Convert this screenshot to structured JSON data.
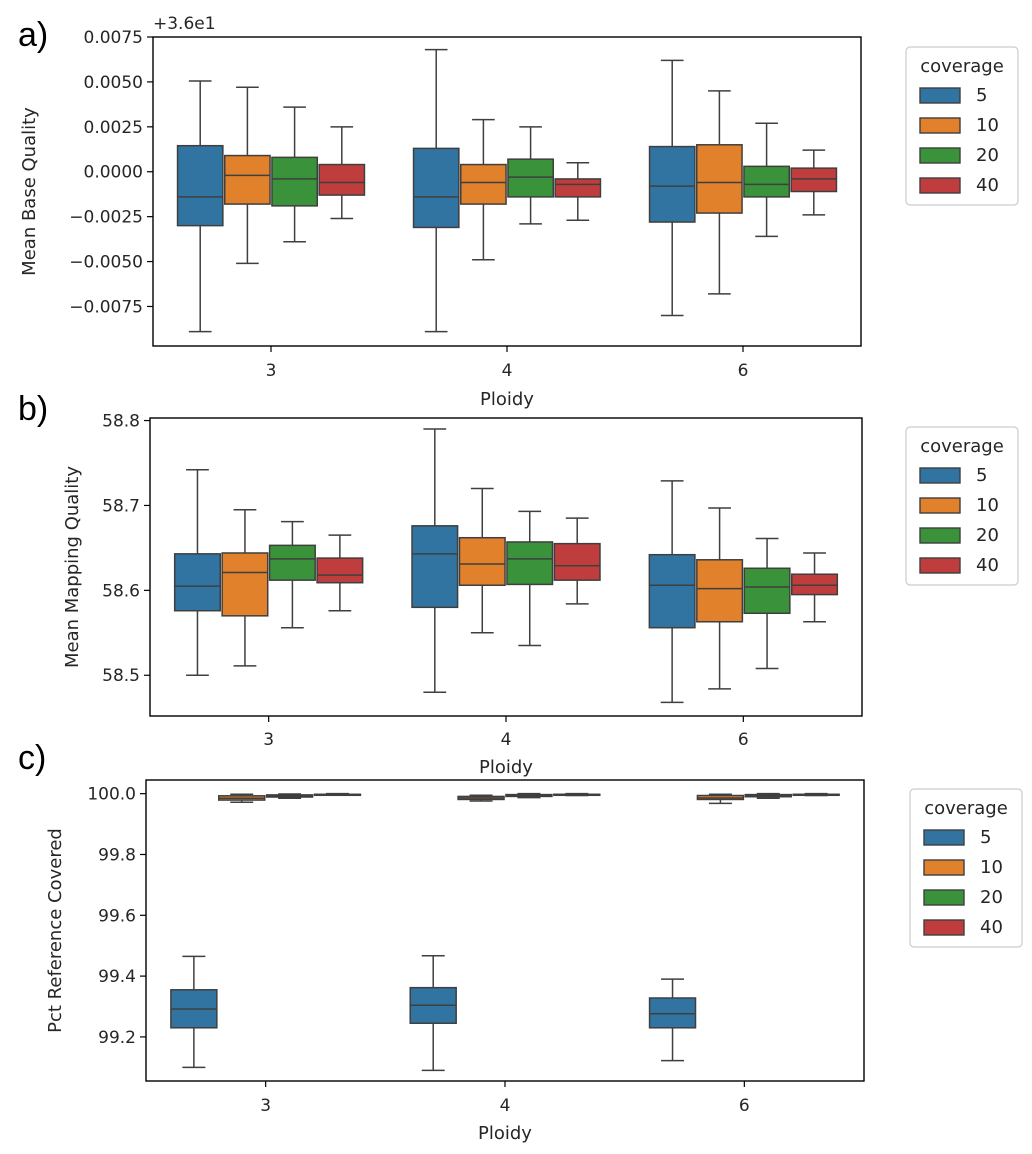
{
  "colors": {
    "5": "#3274a1",
    "10": "#e1812c",
    "20": "#3a923a",
    "40": "#c03d3e",
    "edge": "#3f3f3f",
    "axis": "#000000"
  },
  "legend": {
    "title": "coverage",
    "entries": [
      "5",
      "10",
      "20",
      "40"
    ]
  },
  "chart_data": [
    {
      "panel_label": "a)",
      "type": "boxplot",
      "ylabel": "Mean Base Quality",
      "xlabel": "Ploidy",
      "offset_text": "+3.6e1",
      "categories": [
        "3",
        "4",
        "6"
      ],
      "ylim": [
        -0.0097,
        0.0075
      ],
      "yticks": [
        0.0075,
        0.005,
        0.0025,
        0.0,
        -0.0025,
        -0.005,
        -0.0075
      ],
      "ytick_labels": [
        "0.0075",
        "0.0050",
        "0.0025",
        "0.0000",
        "−0.0025",
        "−0.0050",
        "−0.0075"
      ],
      "series": [
        {
          "name": "5",
          "boxes": [
            {
              "whislo": -0.0089,
              "q1": -0.003,
              "median": -0.0014,
              "q3": 0.00145,
              "whishi": 0.00505
            },
            {
              "whislo": -0.0089,
              "q1": -0.0031,
              "median": -0.0014,
              "q3": 0.0013,
              "whishi": 0.0068
            },
            {
              "whislo": -0.008,
              "q1": -0.0028,
              "median": -0.0008,
              "q3": 0.0014,
              "whishi": 0.0062
            }
          ]
        },
        {
          "name": "10",
          "boxes": [
            {
              "whislo": -0.0051,
              "q1": -0.0018,
              "median": -0.0002,
              "q3": 0.0009,
              "whishi": 0.0047
            },
            {
              "whislo": -0.0049,
              "q1": -0.0018,
              "median": -0.0006,
              "q3": 0.0004,
              "whishi": 0.0029
            },
            {
              "whislo": -0.0068,
              "q1": -0.0023,
              "median": -0.0006,
              "q3": 0.0015,
              "whishi": 0.0045
            }
          ]
        },
        {
          "name": "20",
          "boxes": [
            {
              "whislo": -0.0039,
              "q1": -0.0019,
              "median": -0.0004,
              "q3": 0.0008,
              "whishi": 0.0036
            },
            {
              "whislo": -0.0029,
              "q1": -0.0014,
              "median": -0.0003,
              "q3": 0.0007,
              "whishi": 0.0025
            },
            {
              "whislo": -0.0036,
              "q1": -0.0014,
              "median": -0.0007,
              "q3": 0.0003,
              "whishi": 0.0027
            }
          ]
        },
        {
          "name": "40",
          "boxes": [
            {
              "whislo": -0.0026,
              "q1": -0.0013,
              "median": -0.0006,
              "q3": 0.0004,
              "whishi": 0.0025
            },
            {
              "whislo": -0.0027,
              "q1": -0.0014,
              "median": -0.0007,
              "q3": -0.0004,
              "whishi": 0.0005
            },
            {
              "whislo": -0.0024,
              "q1": -0.0011,
              "median": -0.0004,
              "q3": 0.0002,
              "whishi": 0.0012
            }
          ]
        }
      ]
    },
    {
      "panel_label": "b)",
      "type": "boxplot",
      "ylabel": "Mean Mapping Quality",
      "xlabel": "Ploidy",
      "categories": [
        "3",
        "4",
        "6"
      ],
      "ylim": [
        58.452,
        58.803
      ],
      "yticks": [
        58.8,
        58.7,
        58.6,
        58.5
      ],
      "ytick_labels": [
        "58.8",
        "58.7",
        "58.6",
        "58.5"
      ],
      "series": [
        {
          "name": "5",
          "boxes": [
            {
              "whislo": 58.5,
              "q1": 58.576,
              "median": 58.605,
              "q3": 58.643,
              "whishi": 58.742
            },
            {
              "whislo": 58.48,
              "q1": 58.58,
              "median": 58.643,
              "q3": 58.676,
              "whishi": 58.79
            },
            {
              "whislo": 58.468,
              "q1": 58.556,
              "median": 58.606,
              "q3": 58.642,
              "whishi": 58.729
            }
          ]
        },
        {
          "name": "10",
          "boxes": [
            {
              "whislo": 58.511,
              "q1": 58.57,
              "median": 58.621,
              "q3": 58.644,
              "whishi": 58.695
            },
            {
              "whislo": 58.55,
              "q1": 58.606,
              "median": 58.631,
              "q3": 58.662,
              "whishi": 58.72
            },
            {
              "whislo": 58.484,
              "q1": 58.563,
              "median": 58.602,
              "q3": 58.636,
              "whishi": 58.697
            }
          ]
        },
        {
          "name": "20",
          "boxes": [
            {
              "whislo": 58.556,
              "q1": 58.612,
              "median": 58.637,
              "q3": 58.653,
              "whishi": 58.681
            },
            {
              "whislo": 58.535,
              "q1": 58.607,
              "median": 58.637,
              "q3": 58.657,
              "whishi": 58.693
            },
            {
              "whislo": 58.508,
              "q1": 58.573,
              "median": 58.604,
              "q3": 58.626,
              "whishi": 58.661
            }
          ]
        },
        {
          "name": "40",
          "boxes": [
            {
              "whislo": 58.576,
              "q1": 58.609,
              "median": 58.618,
              "q3": 58.638,
              "whishi": 58.665
            },
            {
              "whislo": 58.584,
              "q1": 58.612,
              "median": 58.629,
              "q3": 58.655,
              "whishi": 58.685
            },
            {
              "whislo": 58.563,
              "q1": 58.595,
              "median": 58.606,
              "q3": 58.619,
              "whishi": 58.644
            }
          ]
        }
      ]
    },
    {
      "panel_label": "c)",
      "type": "boxplot",
      "ylabel": "Pct Reference Covered",
      "xlabel": "Ploidy",
      "categories": [
        "3",
        "4",
        "6"
      ],
      "ylim": [
        99.055,
        100.045
      ],
      "yticks": [
        100.0,
        99.8,
        99.6,
        99.4,
        99.2
      ],
      "ytick_labels": [
        "100.0",
        "99.8",
        "99.6",
        "99.4",
        "99.2"
      ],
      "series": [
        {
          "name": "5",
          "boxes": [
            {
              "whislo": 99.1,
              "q1": 99.23,
              "median": 99.292,
              "q3": 99.355,
              "whishi": 99.465
            },
            {
              "whislo": 99.09,
              "q1": 99.245,
              "median": 99.304,
              "q3": 99.362,
              "whishi": 99.467
            },
            {
              "whislo": 99.122,
              "q1": 99.23,
              "median": 99.276,
              "q3": 99.328,
              "whishi": 99.39
            }
          ]
        },
        {
          "name": "10",
          "boxes": [
            {
              "whislo": 99.972,
              "q1": 99.979,
              "median": 99.985,
              "q3": 99.993,
              "whishi": 99.998
            },
            {
              "whislo": 99.976,
              "q1": 99.981,
              "median": 99.986,
              "q3": 99.991,
              "whishi": 99.995
            },
            {
              "whislo": 99.968,
              "q1": 99.981,
              "median": 99.986,
              "q3": 99.994,
              "whishi": 99.998
            }
          ]
        },
        {
          "name": "20",
          "boxes": [
            {
              "whislo": 99.985,
              "q1": 99.989,
              "median": 99.992,
              "q3": 99.996,
              "whishi": 99.999
            },
            {
              "whislo": 99.987,
              "q1": 99.991,
              "median": 99.994,
              "q3": 99.997,
              "whishi": 100.0
            },
            {
              "whislo": 99.985,
              "q1": 99.99,
              "median": 99.993,
              "q3": 99.997,
              "whishi": 100.0
            }
          ]
        },
        {
          "name": "40",
          "boxes": [
            {
              "whislo": 99.995,
              "q1": 99.996,
              "median": 99.997,
              "q3": 99.998,
              "whishi": 100.0
            },
            {
              "whislo": 99.994,
              "q1": 99.996,
              "median": 99.997,
              "q3": 99.998,
              "whishi": 100.0
            },
            {
              "whislo": 99.994,
              "q1": 99.996,
              "median": 99.997,
              "q3": 99.998,
              "whishi": 100.0
            }
          ]
        }
      ]
    }
  ]
}
